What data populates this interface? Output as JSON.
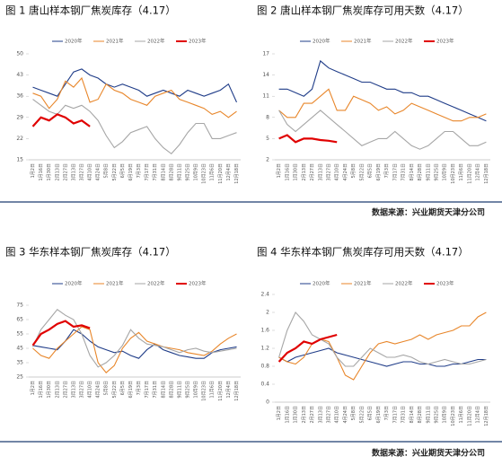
{
  "chart_data": [
    {
      "type": "line",
      "title": "图 1  唐山样本钢厂焦炭库存（4.17）",
      "categories": [
        "1月2日",
        "1月16日",
        "1月30日",
        "2月13日",
        "2月27日",
        "3月13日",
        "3月27日",
        "4月10日",
        "4月24日",
        "5月8日",
        "5月22日",
        "6月5日",
        "6月19日",
        "7月3日",
        "7月17日",
        "7月31日",
        "8月14日",
        "8月28日",
        "9月11日",
        "9月25日",
        "10月9日",
        "10月23日",
        "11月6日",
        "11月20日",
        "12月4日",
        "12月18日"
      ],
      "ylim": [
        15,
        50
      ],
      "yticks": [
        15,
        22,
        29,
        36,
        43,
        50
      ],
      "series": [
        {
          "name": "2020年",
          "color": "#1f3c88",
          "values": [
            39,
            38,
            37,
            36,
            40,
            44,
            45,
            43,
            42,
            40,
            39,
            40,
            39,
            38,
            36,
            37,
            38,
            37,
            36,
            38,
            37,
            36,
            37,
            38,
            40,
            34
          ]
        },
        {
          "name": "2021年",
          "color": "#e8862a",
          "values": [
            37,
            36,
            32,
            35,
            41,
            39,
            42,
            34,
            35,
            40,
            38,
            37,
            35,
            34,
            33,
            36,
            37,
            38,
            35,
            34,
            33,
            32,
            30,
            31,
            29,
            31
          ]
        },
        {
          "name": "2022年",
          "color": "#a6a6a6",
          "values": [
            35,
            33,
            31,
            30,
            33,
            32,
            33,
            31,
            28,
            23,
            19,
            21,
            24,
            25,
            26,
            22,
            19,
            17,
            20,
            24,
            27,
            27,
            22,
            22,
            23,
            24
          ]
        },
        {
          "name": "2023年",
          "color": "#e00000",
          "values": [
            26,
            29,
            28,
            30,
            29,
            27,
            28,
            26,
            null,
            null,
            null,
            null,
            null,
            null,
            null,
            null,
            null,
            null,
            null,
            null,
            null,
            null,
            null,
            null,
            null,
            null
          ]
        }
      ]
    },
    {
      "type": "line",
      "title": "图 2  唐山样本钢厂焦炭库存可用天数（4.17）",
      "categories": [
        "1月2日",
        "1月16日",
        "1月30日",
        "2月13日",
        "2月27日",
        "3月13日",
        "3月27日",
        "4月10日",
        "4月24日",
        "5月8日",
        "5月22日",
        "6月5日",
        "6月19日",
        "7月3日",
        "7月17日",
        "7月31日",
        "8月14日",
        "8月28日",
        "9月11日",
        "9月25日",
        "10月9日",
        "10月23日",
        "11月6日",
        "11月20日",
        "12月4日",
        "12月18日"
      ],
      "ylim": [
        2,
        17
      ],
      "yticks": [
        2,
        5,
        8,
        11,
        14,
        17
      ],
      "series": [
        {
          "name": "2020年",
          "color": "#1f3c88",
          "values": [
            12,
            12,
            11.5,
            11,
            12,
            16,
            15,
            14.5,
            14,
            13.5,
            13,
            13,
            12.5,
            12,
            12,
            11.5,
            11.5,
            11,
            11,
            10.5,
            10,
            9.5,
            9,
            8.5,
            8,
            7.5
          ]
        },
        {
          "name": "2021年",
          "color": "#e8862a",
          "values": [
            9,
            8,
            8,
            10,
            10,
            11,
            12,
            9,
            9,
            11,
            10.5,
            10,
            9,
            9.5,
            8.5,
            9,
            10,
            9.5,
            9,
            8.5,
            8,
            7.5,
            7.5,
            8,
            8,
            8.5
          ]
        },
        {
          "name": "2022年",
          "color": "#a6a6a6",
          "values": [
            9,
            7,
            6,
            7,
            8,
            9,
            8,
            7,
            6,
            5,
            4,
            4.5,
            5,
            5,
            6,
            5,
            4,
            3.5,
            4,
            5,
            6,
            6,
            5,
            4,
            4,
            4.5
          ]
        },
        {
          "name": "2023年",
          "color": "#e00000",
          "values": [
            5,
            5.5,
            4.5,
            5,
            5,
            4.8,
            4.7,
            4.5,
            null,
            null,
            null,
            null,
            null,
            null,
            null,
            null,
            null,
            null,
            null,
            null,
            null,
            null,
            null,
            null,
            null,
            null
          ]
        }
      ]
    },
    {
      "type": "line",
      "title": "图 3  华东样本钢厂焦炭库存（4.17）",
      "categories": [
        "1月2日",
        "1月16日",
        "1月30日",
        "2月13日",
        "2月27日",
        "3月13日",
        "3月27日",
        "4月10日",
        "4月24日",
        "5月8日",
        "5月22日",
        "6月5日",
        "6月19日",
        "7月3日",
        "7月17日",
        "7月31日",
        "8月14日",
        "8月28日",
        "9月11日",
        "9月25日",
        "10月9日",
        "10月23日",
        "11月6日",
        "11月20日",
        "12月4日",
        "12月18日"
      ],
      "ylim": [
        25,
        75
      ],
      "yticks": [
        25,
        35,
        45,
        55,
        65,
        75
      ],
      "series": [
        {
          "name": "2020年",
          "color": "#1f3c88",
          "values": [
            47,
            46,
            45,
            44,
            50,
            58,
            55,
            50,
            46,
            44,
            42,
            43,
            40,
            38,
            44,
            48,
            44,
            42,
            40,
            39,
            38,
            38,
            42,
            44,
            45,
            46
          ]
        },
        {
          "name": "2021年",
          "color": "#e8862a",
          "values": [
            45,
            40,
            38,
            45,
            50,
            55,
            60,
            58,
            35,
            28,
            33,
            45,
            52,
            56,
            50,
            48,
            46,
            45,
            44,
            42,
            41,
            40,
            43,
            48,
            52,
            55
          ]
        },
        {
          "name": "2022年",
          "color": "#a6a6a6",
          "values": [
            46,
            58,
            65,
            72,
            68,
            65,
            55,
            40,
            32,
            35,
            40,
            47,
            58,
            52,
            48,
            47,
            46,
            44,
            42,
            44,
            45,
            43,
            42,
            43,
            44,
            45
          ]
        },
        {
          "name": "2023年",
          "color": "#e00000",
          "values": [
            47,
            55,
            58,
            62,
            64,
            60,
            61,
            59,
            null,
            null,
            null,
            null,
            null,
            null,
            null,
            null,
            null,
            null,
            null,
            null,
            null,
            null,
            null,
            null,
            null,
            null
          ]
        }
      ]
    },
    {
      "type": "line",
      "title": "图 4  华东样本钢厂焦炭库存可用天数（4.17）",
      "categories": [
        "1月2日",
        "1月16日",
        "1月30日",
        "2月13日",
        "2月27日",
        "3月13日",
        "3月27日",
        "4月10日",
        "4月24日",
        "5月8日",
        "5月22日",
        "6月5日",
        "6月19日",
        "7月3日",
        "7月17日",
        "7月31日",
        "8月14日",
        "8月28日",
        "9月11日",
        "9月25日",
        "10月9日",
        "10月23日",
        "11月6日",
        "11月20日",
        "12月4日",
        "12月18日"
      ],
      "ylim": [
        0,
        2.4
      ],
      "yticks": [
        0,
        0.4,
        0.8,
        1.2,
        1.6,
        2,
        2.4
      ],
      "series": [
        {
          "name": "2020年",
          "color": "#1f3c88",
          "values": [
            1.0,
            0.9,
            1.0,
            1.05,
            1.1,
            1.15,
            1.2,
            1.1,
            1.05,
            1.0,
            0.95,
            0.9,
            0.85,
            0.8,
            0.85,
            0.9,
            0.9,
            0.85,
            0.85,
            0.8,
            0.8,
            0.85,
            0.85,
            0.9,
            0.95,
            0.95
          ]
        },
        {
          "name": "2021年",
          "color": "#e8862a",
          "values": [
            1.0,
            0.9,
            0.85,
            1.0,
            1.3,
            1.4,
            1.35,
            1.0,
            0.6,
            0.5,
            0.8,
            1.1,
            1.3,
            1.35,
            1.3,
            1.35,
            1.4,
            1.5,
            1.4,
            1.5,
            1.55,
            1.6,
            1.7,
            1.7,
            1.9,
            2.0
          ]
        },
        {
          "name": "2022年",
          "color": "#a6a6a6",
          "values": [
            1.0,
            1.6,
            2.0,
            1.8,
            1.5,
            1.4,
            1.3,
            1.0,
            0.8,
            0.8,
            1.0,
            1.2,
            1.1,
            1.0,
            1.0,
            1.05,
            1.0,
            0.9,
            0.85,
            0.9,
            0.95,
            0.9,
            0.85,
            0.85,
            0.9,
            0.95
          ]
        },
        {
          "name": "2023年",
          "color": "#e00000",
          "values": [
            0.9,
            1.1,
            1.2,
            1.35,
            1.3,
            1.4,
            1.45,
            1.5,
            null,
            null,
            null,
            null,
            null,
            null,
            null,
            null,
            null,
            null,
            null,
            null,
            null,
            null,
            null,
            null,
            null,
            null
          ]
        }
      ]
    }
  ],
  "sources": [
    "数据来源：兴业期货天津分公司",
    "数据来源：兴业期货天津分公司"
  ]
}
